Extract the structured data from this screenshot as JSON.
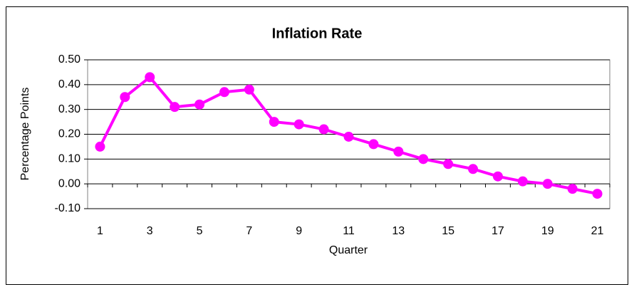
{
  "chart_data": {
    "type": "line",
    "title": "Inflation Rate",
    "x_label": "Quarter",
    "y_label": "Percentage Points",
    "categories": [
      1,
      null,
      3,
      null,
      5,
      null,
      7,
      null,
      9,
      null,
      11,
      null,
      13,
      null,
      15,
      null,
      17,
      null,
      19,
      null,
      21
    ],
    "series": [
      {
        "name": "Inflation Rate",
        "color": "#ff00ff",
        "values": [
          0.15,
          0.35,
          0.43,
          0.31,
          0.32,
          0.37,
          0.38,
          0.25,
          0.24,
          0.22,
          0.19,
          0.16,
          0.13,
          0.1,
          0.08,
          0.06,
          0.03,
          0.01,
          0.0,
          -0.02,
          -0.04
        ]
      }
    ],
    "ylim": [
      -0.1,
      0.5
    ],
    "yticks": [
      {
        "value": -0.1,
        "label": "-0.10"
      },
      {
        "value": 0,
        "label": "0.00"
      },
      {
        "value": 0.1,
        "label": "0.10"
      },
      {
        "value": 0.2,
        "label": "0.20"
      },
      {
        "value": 0.3,
        "label": "0.30"
      },
      {
        "value": 0.4,
        "label": "0.40"
      },
      {
        "value": 0.5,
        "label": "0.50"
      }
    ],
    "grid": true
  }
}
